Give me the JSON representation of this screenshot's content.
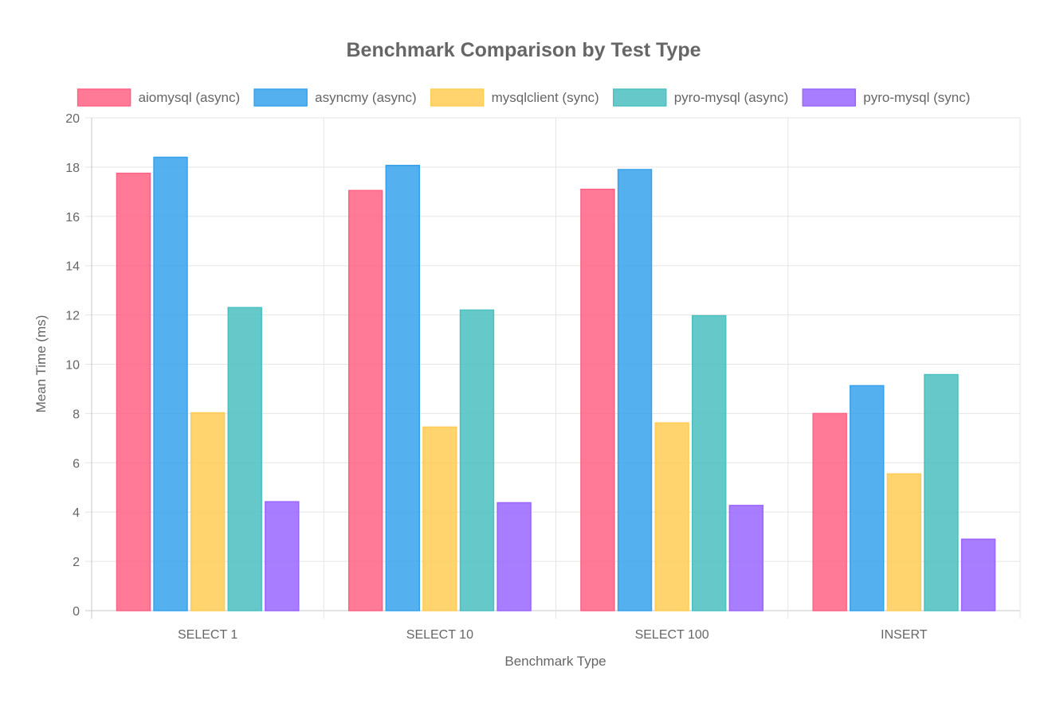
{
  "chart_data": {
    "type": "bar",
    "title": "Benchmark Comparison by Test Type",
    "xlabel": "Benchmark Type",
    "ylabel": "Mean Time (ms)",
    "categories": [
      "SELECT 1",
      "SELECT 10",
      "SELECT 100",
      "INSERT"
    ],
    "ylim": [
      0,
      20
    ],
    "y_ticks": [
      0,
      2,
      4,
      6,
      8,
      10,
      12,
      14,
      16,
      18,
      20
    ],
    "grid": true,
    "legend_position": "top",
    "series": [
      {
        "name": "aiomysql (async)",
        "color": "#ff6384",
        "values": [
          17.75,
          17.05,
          17.1,
          8.0
        ]
      },
      {
        "name": "asyncmy (async)",
        "color": "#36a2eb",
        "values": [
          18.4,
          18.07,
          17.9,
          9.13
        ]
      },
      {
        "name": "mysqlclient (sync)",
        "color": "#ffcd56",
        "values": [
          8.03,
          7.45,
          7.62,
          5.55
        ]
      },
      {
        "name": "pyro-mysql (async)",
        "color": "#4bc0c0",
        "values": [
          12.3,
          12.2,
          11.97,
          9.58
        ]
      },
      {
        "name": "pyro-mysql (sync)",
        "color": "#9966ff",
        "values": [
          4.42,
          4.38,
          4.27,
          2.9
        ]
      }
    ]
  }
}
